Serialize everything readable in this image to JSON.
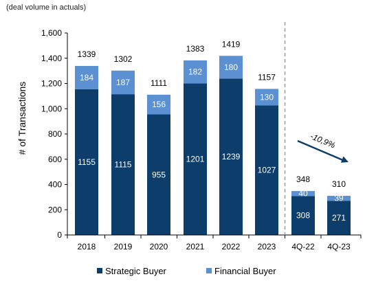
{
  "subtitle": "(deal volume in actuals)",
  "colors": {
    "strategic": "#0c3d6b",
    "financial": "#5b90d2",
    "axis": "#000000",
    "divider": "#9a9a9a",
    "trend_arrow": "#0c3d6b"
  },
  "chart_data": {
    "type": "bar",
    "stacked": true,
    "ylabel": "# of Transactions",
    "ylim": [
      0,
      1600
    ],
    "yticks": [
      0,
      200,
      400,
      600,
      800,
      1000,
      1200,
      1400,
      1600
    ],
    "ytick_labels": [
      "0",
      "200",
      "400",
      "600",
      "800",
      "1,000",
      "1,200",
      "1,400",
      "1,600"
    ],
    "categories": [
      "2018",
      "2019",
      "2020",
      "2021",
      "2022",
      "2023",
      "4Q-22",
      "4Q-23"
    ],
    "series": [
      {
        "name": "Strategic Buyer",
        "values": [
          1155,
          1115,
          955,
          1201,
          1239,
          1027,
          308,
          271
        ]
      },
      {
        "name": "Financial Buyer",
        "values": [
          184,
          187,
          156,
          182,
          180,
          130,
          40,
          39
        ]
      }
    ],
    "totals": [
      1339,
      1302,
      1111,
      1383,
      1419,
      1157,
      348,
      310
    ],
    "divider_after_category": "2023",
    "annotation": {
      "text": "-10,9%",
      "from": "4Q-22",
      "to": "4Q-23"
    },
    "legend": {
      "placement": "bottom",
      "items": [
        "Strategic Buyer",
        "Financial Buyer"
      ]
    },
    "grid": false
  }
}
